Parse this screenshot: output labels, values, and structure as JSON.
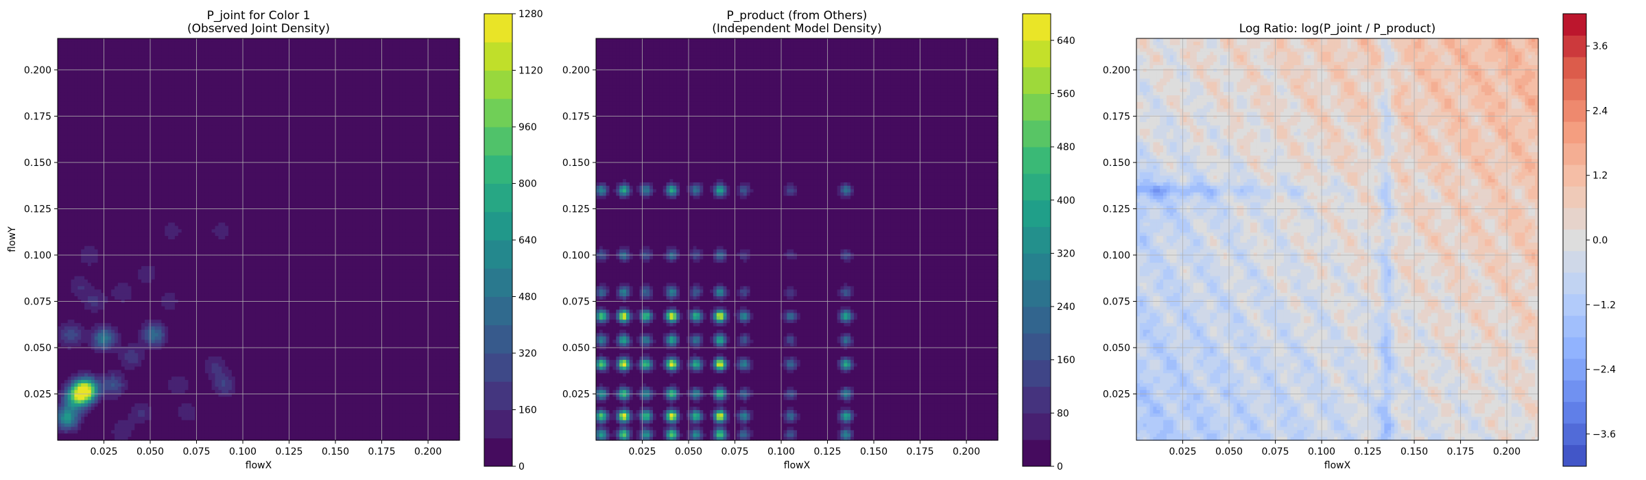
{
  "chart_data": [
    {
      "type": "heatmap",
      "title_lines": [
        "P_joint for Color 1",
        "(Observed Joint Density)"
      ],
      "xlabel": "flowX",
      "ylabel": "flowY",
      "xlim": [
        0.0,
        0.217
      ],
      "ylim": [
        0.0,
        0.217
      ],
      "xticks": [
        0.025,
        0.05,
        0.075,
        0.1,
        0.125,
        0.15,
        0.175,
        0.2
      ],
      "xtick_labels": [
        "0.025",
        "0.050",
        "0.075",
        "0.100",
        "0.125",
        "0.150",
        "0.175",
        "0.200"
      ],
      "yticks": [
        0.025,
        0.05,
        0.075,
        0.1,
        0.125,
        0.15,
        0.175,
        0.2
      ],
      "ytick_labels": [
        "0.025",
        "0.050",
        "0.075",
        "0.100",
        "0.125",
        "0.150",
        "0.175",
        "0.200"
      ],
      "grid": true,
      "colormap": "viridis",
      "colorbar_range": [
        0,
        1280
      ],
      "colorbar_ticks": [
        0,
        160,
        320,
        480,
        640,
        800,
        960,
        1120,
        1280
      ],
      "colorbar_tick_labels": [
        "0",
        "160",
        "320",
        "480",
        "640",
        "800",
        "960",
        "1120",
        "1280"
      ],
      "blobs": [
        {
          "x": 0.015,
          "y": 0.027,
          "value": 1250
        },
        {
          "x": 0.01,
          "y": 0.023,
          "value": 700
        },
        {
          "x": 0.005,
          "y": 0.012,
          "value": 650
        },
        {
          "x": 0.025,
          "y": 0.055,
          "value": 520
        },
        {
          "x": 0.052,
          "y": 0.057,
          "value": 450
        },
        {
          "x": 0.03,
          "y": 0.03,
          "value": 330
        },
        {
          "x": 0.007,
          "y": 0.057,
          "value": 300
        },
        {
          "x": 0.04,
          "y": 0.045,
          "value": 220
        },
        {
          "x": 0.02,
          "y": 0.075,
          "value": 180
        },
        {
          "x": 0.012,
          "y": 0.083,
          "value": 160
        },
        {
          "x": 0.035,
          "y": 0.08,
          "value": 150
        },
        {
          "x": 0.048,
          "y": 0.09,
          "value": 140
        },
        {
          "x": 0.017,
          "y": 0.1,
          "value": 150
        },
        {
          "x": 0.09,
          "y": 0.03,
          "value": 240
        },
        {
          "x": 0.085,
          "y": 0.04,
          "value": 170
        },
        {
          "x": 0.065,
          "y": 0.03,
          "value": 150
        },
        {
          "x": 0.07,
          "y": 0.015,
          "value": 140
        },
        {
          "x": 0.045,
          "y": 0.015,
          "value": 180
        },
        {
          "x": 0.035,
          "y": 0.005,
          "value": 160
        },
        {
          "x": 0.06,
          "y": 0.075,
          "value": 130
        },
        {
          "x": 0.062,
          "y": 0.113,
          "value": 120
        },
        {
          "x": 0.088,
          "y": 0.113,
          "value": 120
        }
      ]
    },
    {
      "type": "heatmap",
      "title_lines": [
        "P_product (from Others)",
        "(Independent Model Density)"
      ],
      "xlabel": "flowX",
      "ylabel": "",
      "xlim": [
        0.0,
        0.217
      ],
      "ylim": [
        0.0,
        0.217
      ],
      "xticks": [
        0.025,
        0.05,
        0.075,
        0.1,
        0.125,
        0.15,
        0.175,
        0.2
      ],
      "xtick_labels": [
        "0.025",
        "0.050",
        "0.075",
        "0.100",
        "0.125",
        "0.150",
        "0.175",
        "0.200"
      ],
      "yticks": [
        0.025,
        0.05,
        0.075,
        0.1,
        0.125,
        0.15,
        0.175,
        0.2
      ],
      "ytick_labels": [
        "0.025",
        "0.050",
        "0.075",
        "0.100",
        "0.125",
        "0.150",
        "0.175",
        "0.200"
      ],
      "grid": true,
      "colormap": "viridis",
      "colorbar_range": [
        0,
        680
      ],
      "colorbar_ticks": [
        0,
        80,
        160,
        240,
        320,
        400,
        480,
        560,
        640
      ],
      "colorbar_tick_labels": [
        "0",
        "80",
        "160",
        "240",
        "320",
        "400",
        "480",
        "560",
        "640"
      ],
      "x_peaks": [
        0.003,
        0.015,
        0.027,
        0.041,
        0.054,
        0.067,
        0.08,
        0.105,
        0.135
      ],
      "x_peak_weights": [
        0.75,
        1.0,
        0.7,
        1.0,
        0.65,
        1.0,
        0.45,
        0.35,
        0.6
      ],
      "y_peaks": [
        0.003,
        0.013,
        0.025,
        0.041,
        0.054,
        0.067,
        0.08,
        0.1,
        0.135
      ],
      "y_peak_weights": [
        0.75,
        1.0,
        0.7,
        1.0,
        0.6,
        1.0,
        0.45,
        0.35,
        0.6
      ],
      "peak_value": 640
    },
    {
      "type": "heatmap",
      "title_lines": [
        "Log Ratio: log(P_joint / P_product)"
      ],
      "xlabel": "flowX",
      "ylabel": "",
      "xlim": [
        0.0,
        0.217
      ],
      "ylim": [
        0.0,
        0.217
      ],
      "xticks": [
        0.025,
        0.05,
        0.075,
        0.1,
        0.125,
        0.15,
        0.175,
        0.2
      ],
      "xtick_labels": [
        "0.025",
        "0.050",
        "0.075",
        "0.100",
        "0.125",
        "0.150",
        "0.175",
        "0.200"
      ],
      "yticks": [
        0.025,
        0.05,
        0.075,
        0.1,
        0.125,
        0.15,
        0.175,
        0.2
      ],
      "ytick_labels": [
        "0.025",
        "0.050",
        "0.075",
        "0.100",
        "0.125",
        "0.150",
        "0.175",
        "0.200"
      ],
      "grid": true,
      "colormap": "coolwarm",
      "colorbar_range": [
        -4.2,
        4.2
      ],
      "colorbar_ticks": [
        -3.6,
        -2.4,
        -1.2,
        0.0,
        1.2,
        2.4,
        3.6
      ],
      "colorbar_tick_labels": [
        "−3.6",
        "−2.4",
        "−1.2",
        "0.0",
        "1.2",
        "2.4",
        "3.6"
      ],
      "trend": "red (positive) toward upper-right, blue (negative) lines at flowX≈0.135 and flowY≈0.135"
    }
  ]
}
